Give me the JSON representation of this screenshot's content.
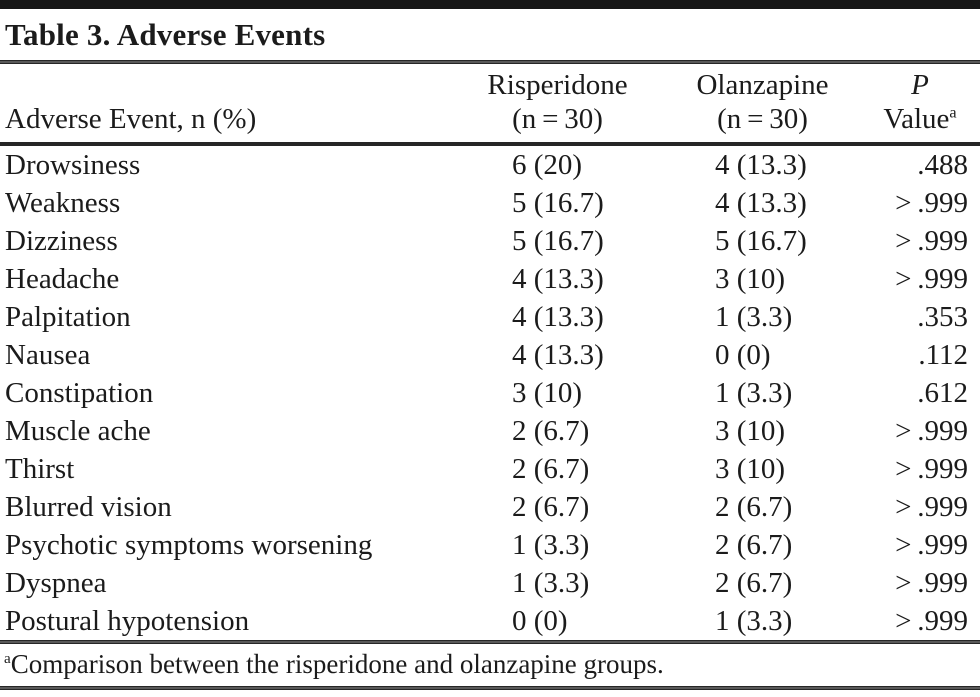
{
  "table": {
    "title": "Table 3. Adverse Events",
    "columns": {
      "event": "Adverse Event, n (%)",
      "risperidone": {
        "line1": "Risperidone",
        "line2": "(n = 30)"
      },
      "olanzapine": {
        "line1": "Olanzapine",
        "line2": "(n = 30)"
      },
      "pvalue": {
        "line1": "P",
        "line2": "Value",
        "superscript": "a"
      }
    },
    "rows": [
      {
        "event": "Drowsiness",
        "risperidone": "6 (20)",
        "olanzapine": "4 (13.3)",
        "p": ".488"
      },
      {
        "event": "Weakness",
        "risperidone": "5 (16.7)",
        "olanzapine": "4 (13.3)",
        "p": "> .999"
      },
      {
        "event": "Dizziness",
        "risperidone": "5 (16.7)",
        "olanzapine": "5 (16.7)",
        "p": "> .999"
      },
      {
        "event": "Headache",
        "risperidone": "4 (13.3)",
        "olanzapine": "3 (10)",
        "p": "> .999"
      },
      {
        "event": "Palpitation",
        "risperidone": "4 (13.3)",
        "olanzapine": "1 (3.3)",
        "p": ".353"
      },
      {
        "event": "Nausea",
        "risperidone": "4 (13.3)",
        "olanzapine": "0 (0)",
        "p": ".112"
      },
      {
        "event": "Constipation",
        "risperidone": "3 (10)",
        "olanzapine": "1 (3.3)",
        "p": ".612"
      },
      {
        "event": "Muscle ache",
        "risperidone": "2 (6.7)",
        "olanzapine": "3 (10)",
        "p": "> .999"
      },
      {
        "event": "Thirst",
        "risperidone": "2 (6.7)",
        "olanzapine": "3 (10)",
        "p": "> .999"
      },
      {
        "event": "Blurred vision",
        "risperidone": "2 (6.7)",
        "olanzapine": "2 (6.7)",
        "p": "> .999"
      },
      {
        "event": "Psychotic symptoms worsening",
        "risperidone": "1 (3.3)",
        "olanzapine": "2 (6.7)",
        "p": "> .999"
      },
      {
        "event": "Dyspnea",
        "risperidone": "1 (3.3)",
        "olanzapine": "2 (6.7)",
        "p": "> .999"
      },
      {
        "event": "Postural hypotension",
        "risperidone": "0 (0)",
        "olanzapine": "1 (3.3)",
        "p": "> .999"
      }
    ],
    "footnote": {
      "marker": "a",
      "text": "Comparison between the risperidone and olanzapine groups."
    }
  }
}
